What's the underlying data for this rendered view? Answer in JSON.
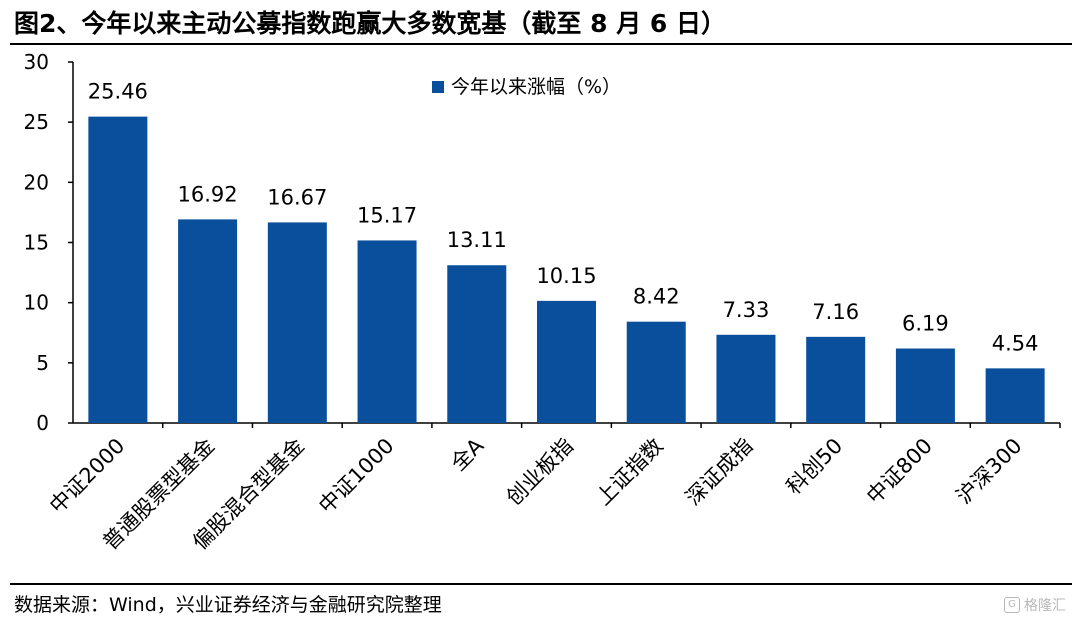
{
  "title": "图2、今年以来主动公募指数跑赢大多数宽基（截至 8 月 6 日）",
  "source": "数据来源：Wind，兴业证券经济与金融研究院整理",
  "watermark": "格隆汇",
  "colors": {
    "bar": "#0a4f9c",
    "axis": "#000000"
  },
  "chart_data": {
    "type": "bar",
    "categories": [
      "中证2000",
      "普通股票型基金",
      "偏股混合型基金",
      "中证1000",
      "全A",
      "创业板指",
      "上证指数",
      "深证成指",
      "科创50",
      "中证800",
      "沪深300"
    ],
    "series": [
      {
        "name": "今年以来涨幅（%）",
        "values": [
          25.46,
          16.92,
          16.67,
          15.17,
          13.11,
          10.15,
          8.42,
          7.33,
          7.16,
          6.19,
          4.54
        ]
      }
    ],
    "data_labels": [
      "25.46",
      "16.92",
      "16.67",
      "15.17",
      "13.11",
      "10.15",
      "8.42",
      "7.33",
      "7.16",
      "6.19",
      "4.54"
    ],
    "yticks": [
      "0",
      "5",
      "10",
      "15",
      "20",
      "25",
      "30"
    ],
    "ylim": [
      0,
      30
    ],
    "xlabel": "",
    "ylabel": "",
    "grid": false,
    "legend_position": "top-center"
  }
}
